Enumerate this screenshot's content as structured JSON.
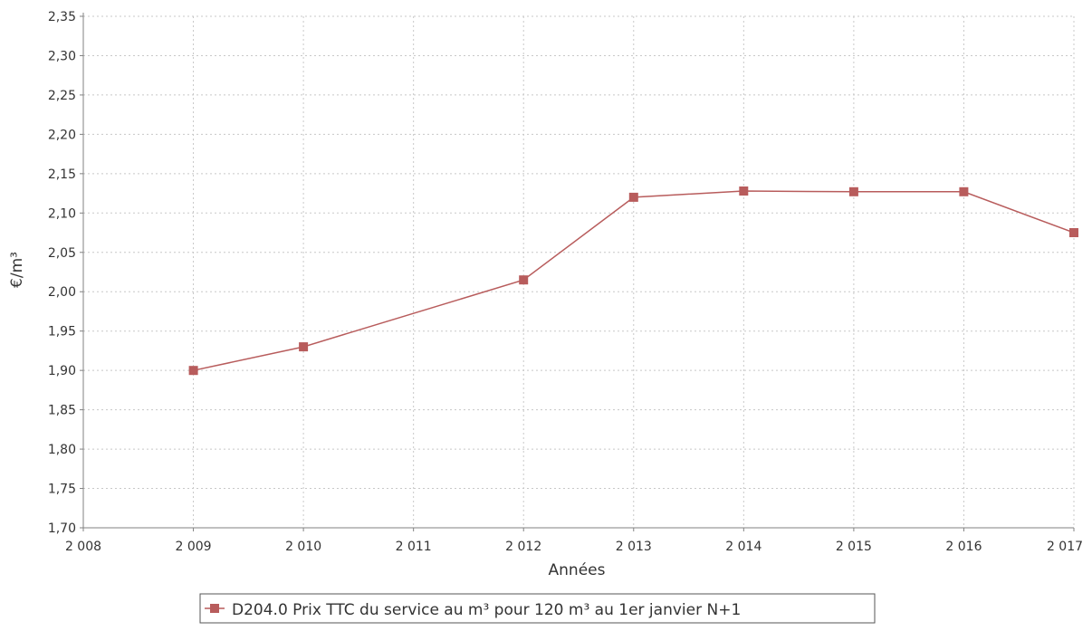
{
  "chart_data": {
    "type": "line",
    "title": "",
    "xlabel": "Années",
    "ylabel": "€/m³",
    "x_ticks": [
      "2 008",
      "2 009",
      "2 010",
      "2 011",
      "2 012",
      "2 013",
      "2 014",
      "2 015",
      "2 016",
      "2 017"
    ],
    "y_ticks": [
      "1,70",
      "1,75",
      "1,80",
      "1,85",
      "1,90",
      "1,95",
      "2,00",
      "2,05",
      "2,10",
      "2,15",
      "2,20",
      "2,25",
      "2,30",
      "2,35"
    ],
    "xlim": [
      2008,
      2017
    ],
    "ylim": [
      1.7,
      2.35
    ],
    "grid": true,
    "legend_position": "bottom",
    "series": [
      {
        "name": "D204.0 Prix TTC du service au m³ pour 120 m³ au 1er janvier N+1",
        "color": "#b85c5c",
        "x": [
          2009,
          2010,
          2012,
          2013,
          2014,
          2015,
          2016,
          2017
        ],
        "y": [
          1.9,
          1.93,
          2.015,
          2.12,
          2.128,
          2.127,
          2.127,
          2.075
        ]
      }
    ]
  }
}
